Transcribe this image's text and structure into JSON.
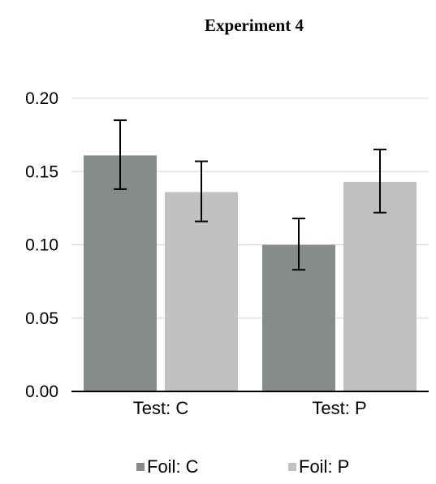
{
  "chart_data": {
    "type": "bar",
    "title": "Experiment 4",
    "xlabel": "",
    "ylabel": "",
    "categories": [
      "Test: C",
      "Test: P"
    ],
    "series": [
      {
        "name": "Foil: C",
        "color": "#868c88",
        "values": [
          0.161,
          0.1
        ],
        "error_low": [
          0.138,
          0.083
        ],
        "error_high": [
          0.185,
          0.118
        ]
      },
      {
        "name": "Foil: P",
        "color": "#c1c1c1",
        "values": [
          0.136,
          0.143
        ],
        "error_low": [
          0.116,
          0.122
        ],
        "error_high": [
          0.157,
          0.165
        ]
      }
    ],
    "ylim": [
      0,
      0.2
    ],
    "yticks": [
      "0.00",
      "0.05",
      "0.10",
      "0.15",
      "0.20"
    ],
    "grid": true,
    "legend_position": "bottom"
  }
}
